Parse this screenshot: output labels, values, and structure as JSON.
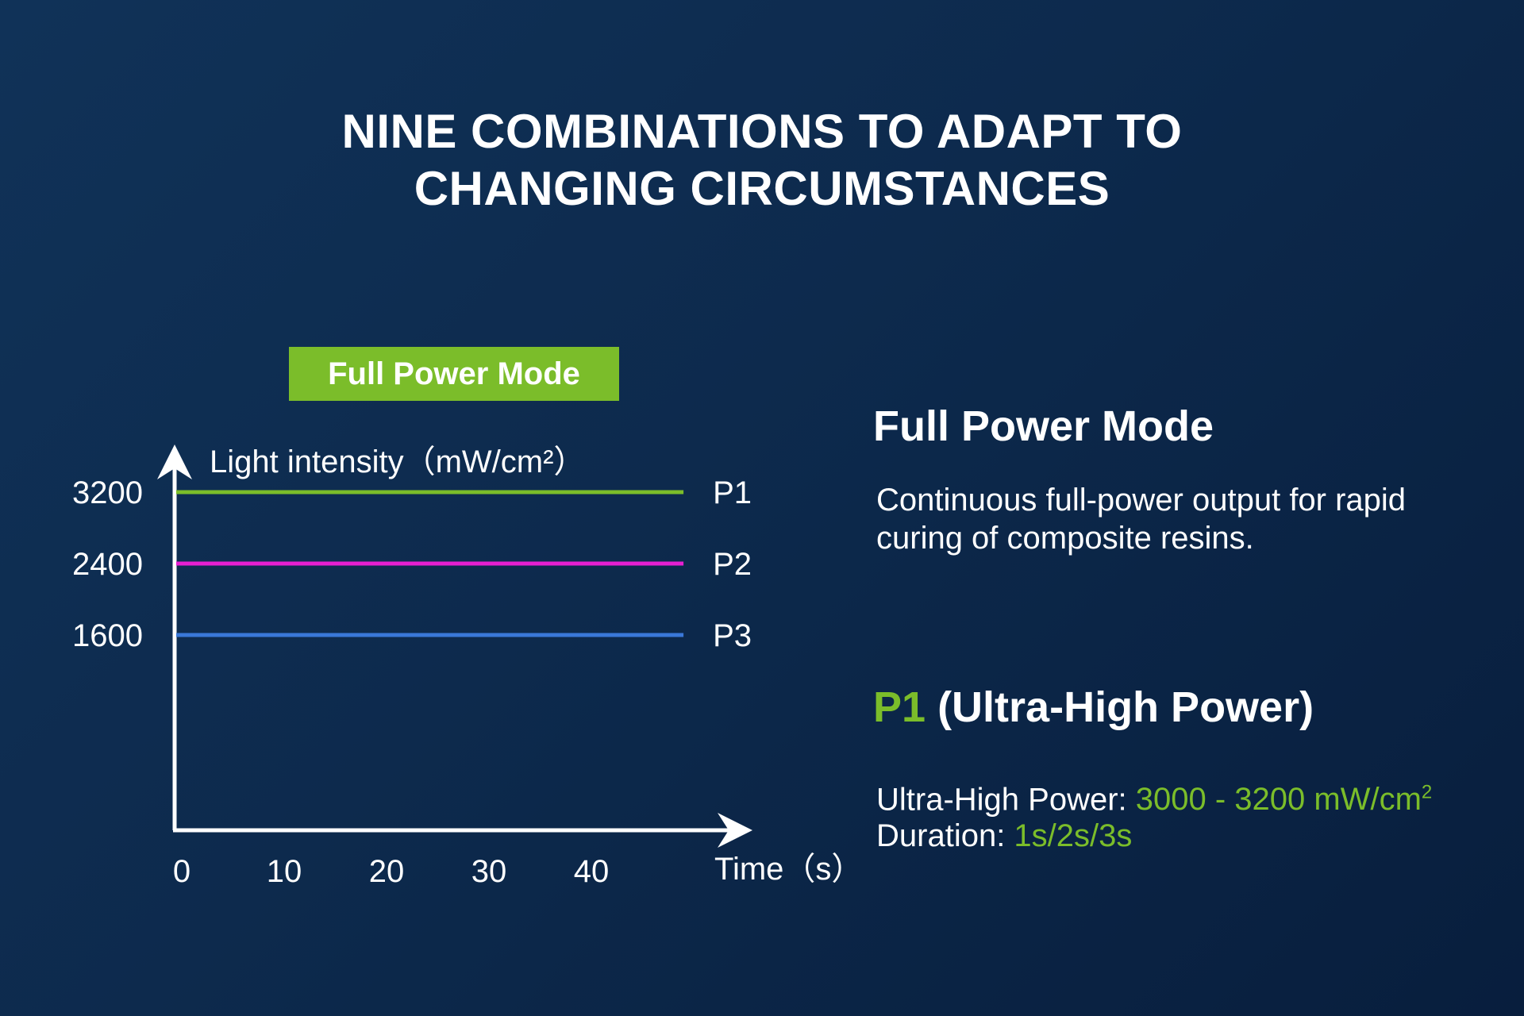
{
  "title": {
    "line1": "NINE COMBINATIONS TO ADAPT TO",
    "line2": "CHANGING CIRCUMSTANCES"
  },
  "mode_badge": "Full Power Mode",
  "chart_data": {
    "type": "line",
    "ylabel": "Light intensity（mW/cm²）",
    "xlabel": "Time（s）",
    "x_ticks": [
      0,
      10,
      20,
      30,
      40
    ],
    "y_ticks": [
      1600,
      2400,
      3200
    ],
    "x": [
      0,
      49
    ],
    "series": [
      {
        "name": "P1",
        "values": [
          3200,
          3200
        ],
        "color": "#7bbd2a"
      },
      {
        "name": "P2",
        "values": [
          2400,
          2400
        ],
        "color": "#e61fd2"
      },
      {
        "name": "P3",
        "values": [
          1600,
          1600
        ],
        "color": "#3a78d8"
      }
    ]
  },
  "side": {
    "heading": "Full Power Mode",
    "description": "Continuous full-power output for rapid curing of composite resins."
  },
  "preset": {
    "name": "P1",
    "label": "(Ultra-High Power)",
    "power_label": "Ultra-High Power: ",
    "power_value": "3000 - 3200 mW/cm",
    "power_sup": "2",
    "duration_label": "Duration: ",
    "duration_value": "1s/2s/3s"
  },
  "colors": {
    "background": "#0d2a4d",
    "accent_green": "#7bbd2a",
    "line_p2": "#e61fd2",
    "line_p3": "#3a78d8"
  }
}
